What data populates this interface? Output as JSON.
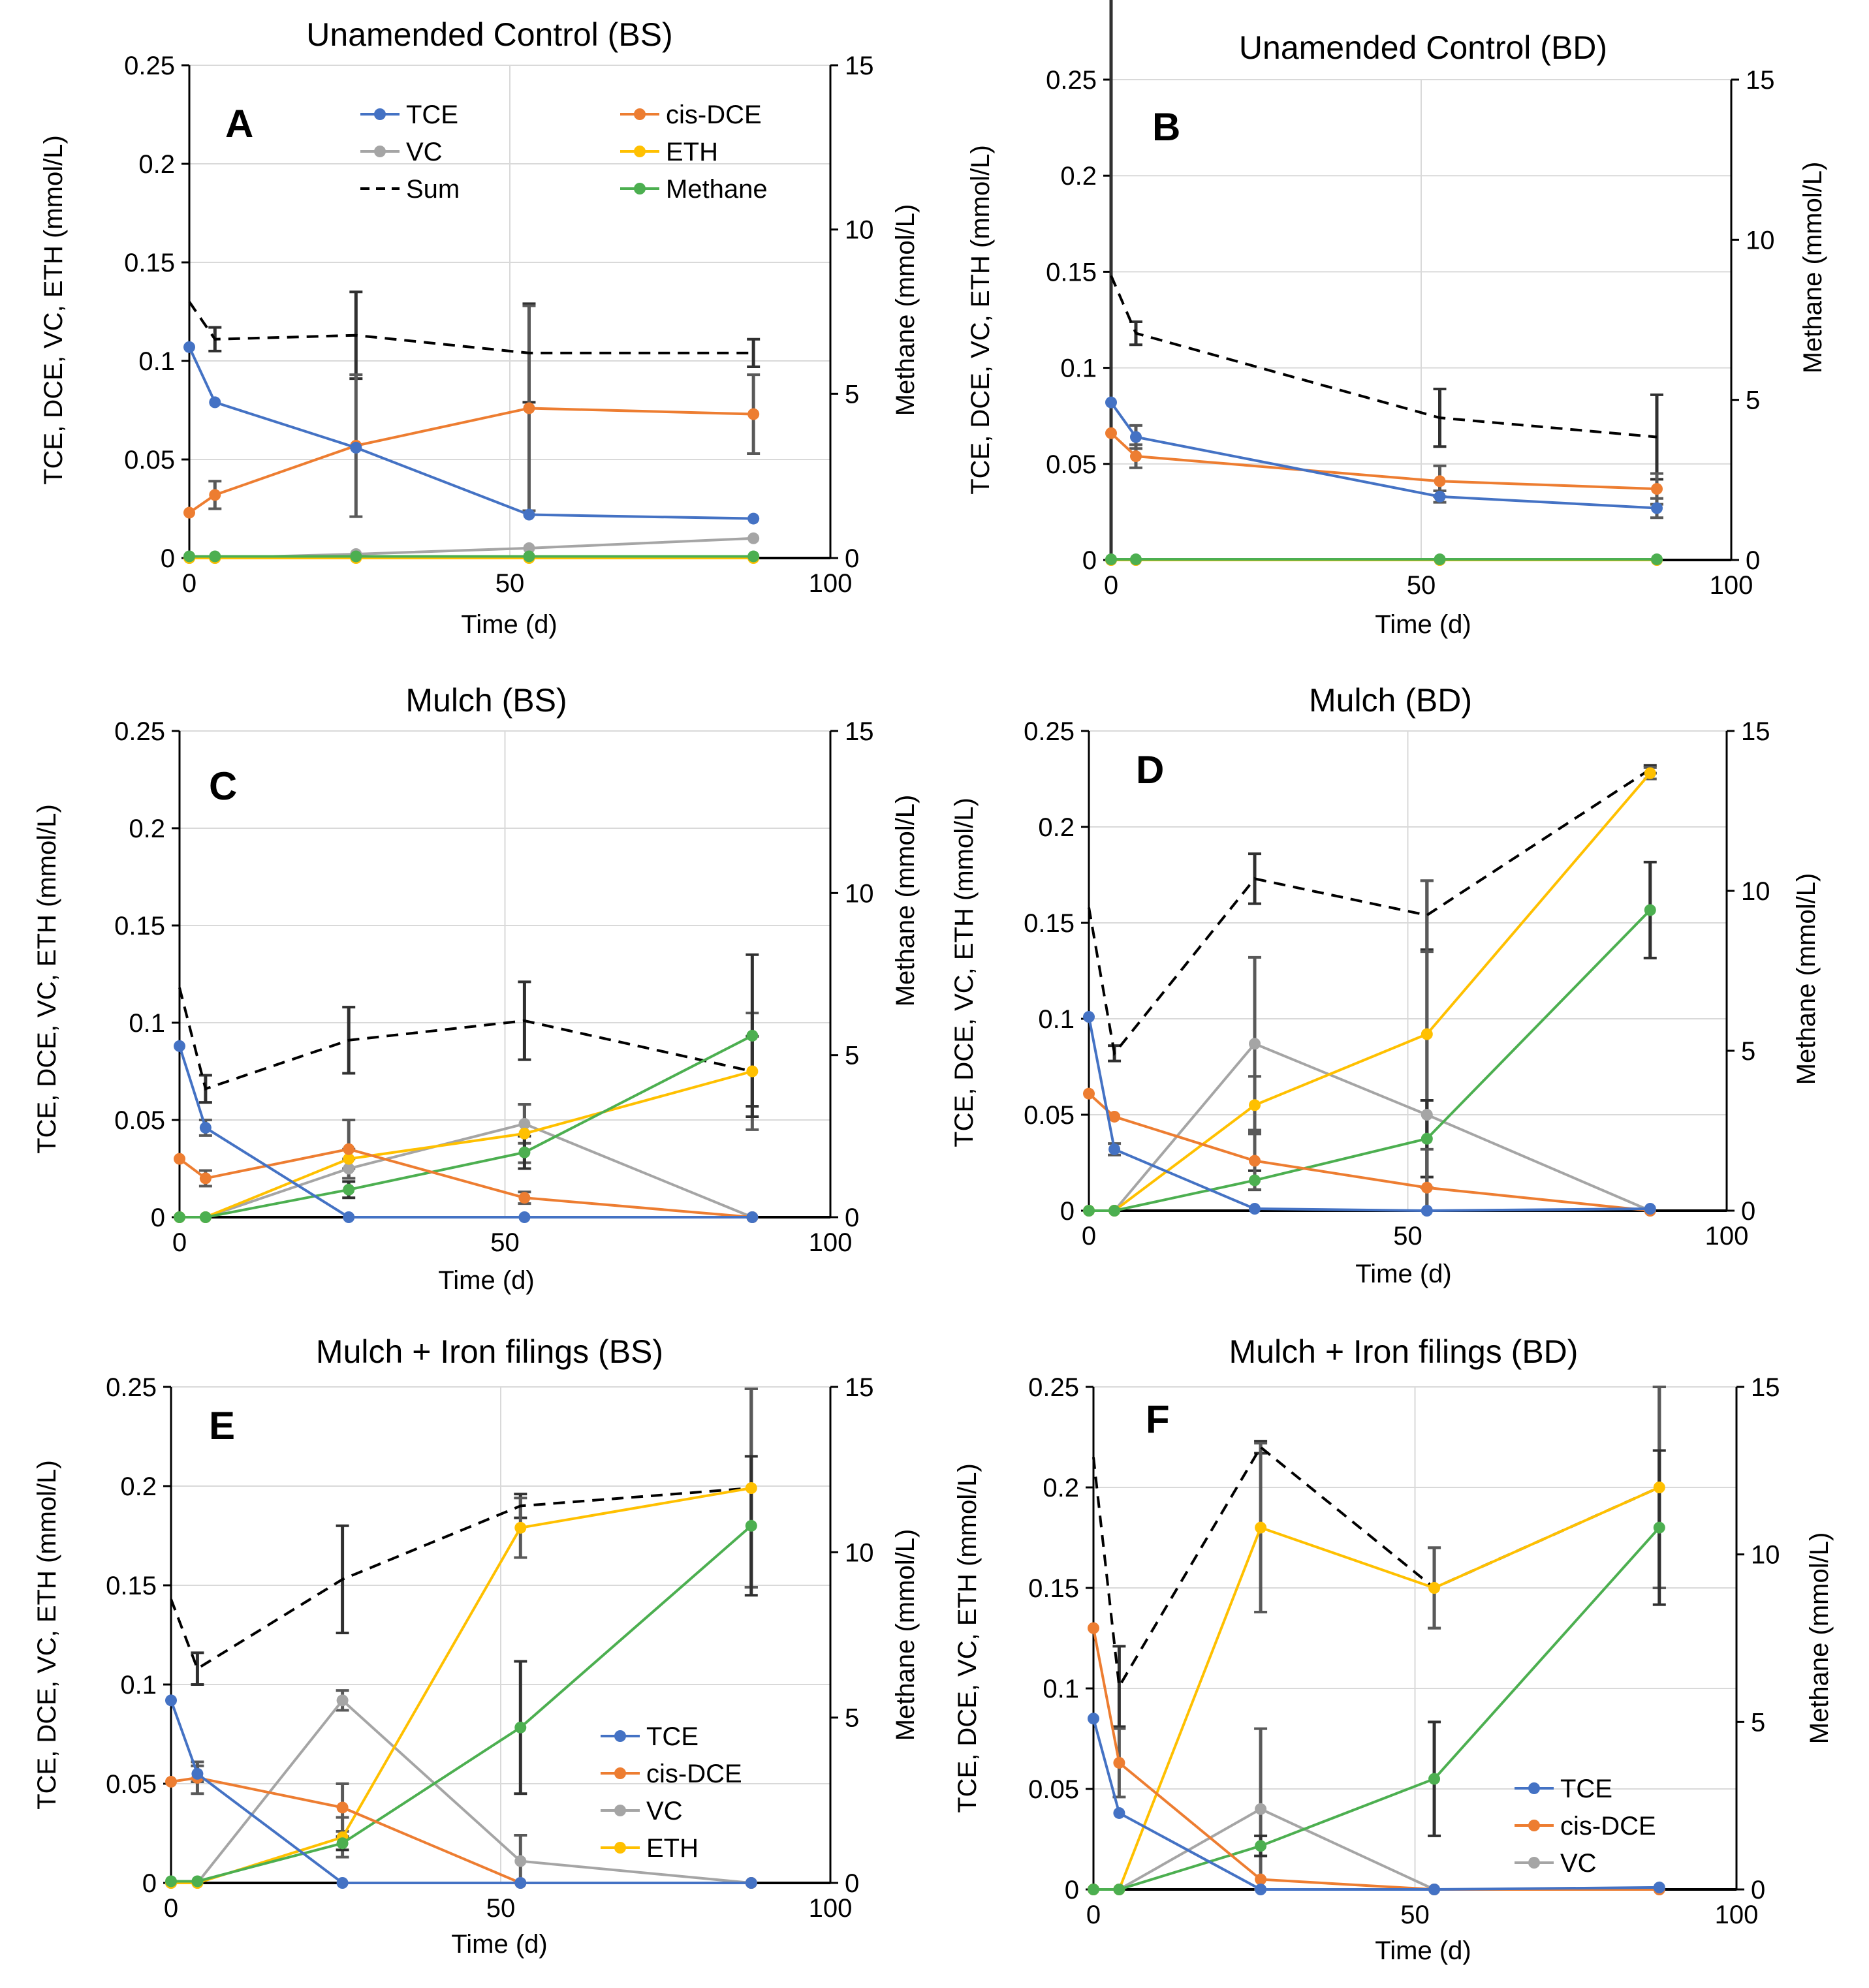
{
  "figure": {
    "shared": {
      "xlabel": "Time (d)",
      "ylabel": "TCE, DCE, VC, ETH (mmol/L)",
      "y2label": "Methane (mmol/L)",
      "xlim": [
        0,
        100
      ],
      "xticks": [
        0,
        50,
        100
      ],
      "ylim": [
        0,
        0.25
      ],
      "yticks": [
        0,
        0.05,
        0.1,
        0.15,
        0.2,
        0.25
      ],
      "y2lim": [
        0,
        15
      ],
      "y2ticks": [
        0,
        5,
        10,
        15
      ]
    },
    "colors": {
      "TCE": "#4472C4",
      "cis-DCE": "#ED7D31",
      "VC": "#A5A5A5",
      "ETH": "#FFC000",
      "Sum": "#000000",
      "Methane": "#4CAF50",
      "gridline": "#D9D9D9",
      "errorbar": "#595959"
    }
  },
  "chart_data": [
    {
      "type": "line",
      "panel": "A",
      "title": "Unamended Control (BS)",
      "xlabel": "Time (d)",
      "ylabel": "TCE, DCE, VC, ETH (mmol/L)",
      "y2label": "Methane (mmol/L)",
      "ylim": [
        0,
        0.25
      ],
      "y2lim": [
        0,
        15
      ],
      "legend": [
        "TCE",
        "cis-DCE",
        "VC",
        "ETH",
        "Sum",
        "Methane"
      ],
      "legend_position": "top-right",
      "series": [
        {
          "name": "TCE",
          "x": [
            0,
            4,
            26,
            53,
            88
          ],
          "values": [
            0.107,
            0.079,
            0.056,
            0.022,
            0.02
          ]
        },
        {
          "name": "cis-DCE",
          "x": [
            0,
            4,
            26,
            53,
            88
          ],
          "values": [
            0.023,
            0.032,
            0.057,
            0.076,
            0.073
          ],
          "error": [
            0,
            0.007,
            0.036,
            0.052,
            0.02
          ]
        },
        {
          "name": "VC",
          "x": [
            0,
            4,
            26,
            53,
            88
          ],
          "values": [
            0,
            0,
            0.002,
            0.005,
            0.01
          ]
        },
        {
          "name": "ETH",
          "x": [
            0,
            4,
            26,
            53,
            88
          ],
          "values": [
            0,
            0,
            0,
            0,
            0
          ]
        },
        {
          "name": "Sum",
          "style": "dashed",
          "x": [
            0,
            4,
            26,
            53,
            88
          ],
          "values": [
            0.13,
            0.111,
            0.113,
            0.104,
            0.104
          ],
          "error": [
            0,
            0.006,
            0.022,
            0.025,
            0.007
          ]
        },
        {
          "name": "Methane",
          "axis": "y2",
          "x": [
            0,
            4,
            26,
            53,
            88
          ],
          "values": [
            0.05,
            0.05,
            0.05,
            0.05,
            0.05
          ]
        }
      ]
    },
    {
      "type": "line",
      "panel": "B",
      "title": "Unamended Control (BD)",
      "xlabel": "Time (d)",
      "ylabel": "TCE, DCE, VC, ETH (mmol/L)",
      "y2label": "Methane (mmol/L)",
      "ylim": [
        0,
        0.25
      ],
      "y2lim": [
        0,
        15
      ],
      "series": [
        {
          "name": "TCE",
          "x": [
            0,
            4,
            53,
            88
          ],
          "values": [
            0.082,
            0.064,
            0.033,
            0.027
          ],
          "error": [
            0,
            0.006,
            0.003,
            0.005
          ]
        },
        {
          "name": "cis-DCE",
          "x": [
            0,
            4,
            53,
            88
          ],
          "values": [
            0.066,
            0.054,
            0.041,
            0.037
          ],
          "error": [
            0,
            0.006,
            0.008,
            0.008
          ]
        },
        {
          "name": "VC",
          "x": [
            0,
            4,
            53,
            88
          ],
          "values": [
            0,
            0,
            0,
            0
          ]
        },
        {
          "name": "ETH",
          "x": [
            0,
            4,
            53,
            88
          ],
          "values": [
            0,
            0,
            0,
            0
          ]
        },
        {
          "name": "Sum",
          "style": "dashed",
          "x": [
            0,
            4,
            53,
            88
          ],
          "values": [
            0.148,
            0.118,
            0.074,
            0.064
          ],
          "error": [
            0.148,
            0.006,
            0.015,
            0.022
          ]
        },
        {
          "name": "Methane",
          "axis": "y2",
          "x": [
            0,
            4,
            53,
            88
          ],
          "values": [
            0.02,
            0.02,
            0.02,
            0.02
          ]
        }
      ]
    },
    {
      "type": "line",
      "panel": "C",
      "title": "Mulch (BS)",
      "xlabel": "Time (d)",
      "ylabel": "TCE, DCE, VC, ETH (mmol/L)",
      "y2label": "Methane (mmol/L)",
      "ylim": [
        0,
        0.25
      ],
      "y2lim": [
        0,
        15
      ],
      "series": [
        {
          "name": "TCE",
          "x": [
            0,
            4,
            26,
            53,
            88
          ],
          "values": [
            0.088,
            0.046,
            0,
            0,
            0
          ],
          "error": [
            0,
            0.004,
            0,
            0,
            0
          ]
        },
        {
          "name": "cis-DCE",
          "x": [
            0,
            4,
            26,
            53,
            88
          ],
          "values": [
            0.03,
            0.02,
            0.035,
            0.01,
            0
          ],
          "error": [
            0,
            0.004,
            0.015,
            0.003,
            0
          ]
        },
        {
          "name": "VC",
          "x": [
            0,
            4,
            26,
            53,
            88
          ],
          "values": [
            0,
            0,
            0.025,
            0.048,
            0
          ],
          "error": [
            0,
            0,
            0.005,
            0.01,
            0
          ]
        },
        {
          "name": "ETH",
          "x": [
            0,
            4,
            26,
            53,
            88
          ],
          "values": [
            0,
            0,
            0.03,
            0.043,
            0.075
          ],
          "error": [
            0,
            0,
            0.005,
            0.015,
            0.03
          ]
        },
        {
          "name": "Sum",
          "style": "dashed",
          "x": [
            0,
            4,
            26,
            53,
            88
          ],
          "values": [
            0.118,
            0.066,
            0.091,
            0.101,
            0.075
          ],
          "error": [
            0,
            0.007,
            0.017,
            0.02,
            0.018
          ]
        },
        {
          "name": "Methane",
          "axis": "y2",
          "x": [
            0,
            4,
            26,
            53,
            88
          ],
          "values": [
            0,
            0,
            0.85,
            2,
            5.6
          ],
          "error": [
            0,
            0,
            0.25,
            0.5,
            2.5
          ]
        }
      ]
    },
    {
      "type": "line",
      "panel": "D",
      "title": "Mulch (BD)",
      "xlabel": "Time (d)",
      "ylabel": "TCE, DCE, VC, ETH (mmol/L)",
      "y2label": "Methane (mmol/L)",
      "ylim": [
        0,
        0.25
      ],
      "y2lim": [
        0,
        15
      ],
      "series": [
        {
          "name": "TCE",
          "x": [
            0,
            4,
            26,
            53,
            88
          ],
          "values": [
            0.101,
            0.032,
            0.001,
            0,
            0.001
          ],
          "error": [
            0,
            0.003,
            0,
            0,
            0
          ]
        },
        {
          "name": "cis-DCE",
          "x": [
            0,
            4,
            26,
            53,
            88
          ],
          "values": [
            0.061,
            0.049,
            0.026,
            0.012,
            0
          ],
          "error": [
            0,
            0,
            0.015,
            0.02,
            0
          ]
        },
        {
          "name": "VC",
          "x": [
            0,
            4,
            26,
            53,
            88
          ],
          "values": [
            0,
            0,
            0.087,
            0.05,
            0
          ],
          "error": [
            0,
            0,
            0.045,
            0.085,
            0
          ]
        },
        {
          "name": "ETH",
          "x": [
            0,
            4,
            26,
            53,
            88
          ],
          "values": [
            0,
            0,
            0.055,
            0.092,
            0.228
          ],
          "error": [
            0,
            0,
            0.015,
            0.08,
            0.003
          ]
        },
        {
          "name": "Sum",
          "style": "dashed",
          "x": [
            0,
            4,
            26,
            53,
            88
          ],
          "values": [
            0.158,
            0.082,
            0.173,
            0.154,
            0.23
          ],
          "error": [
            0,
            0.004,
            0.013,
            0.018,
            0.002
          ]
        },
        {
          "name": "Methane",
          "axis": "y2",
          "x": [
            0,
            4,
            26,
            53,
            88
          ],
          "values": [
            0,
            0,
            0.95,
            2.25,
            9.4
          ],
          "error": [
            0,
            0,
            0.3,
            1.2,
            1.5
          ]
        }
      ]
    },
    {
      "type": "line",
      "panel": "E",
      "title": "Mulch + Iron filings (BS)",
      "xlabel": "Time (d)",
      "ylabel": "TCE, DCE, VC, ETH (mmol/L)",
      "y2label": "Methane (mmol/L)",
      "ylim": [
        0,
        0.25
      ],
      "y2lim": [
        0,
        15
      ],
      "legend": [
        "TCE",
        "cis-DCE",
        "VC",
        "ETH"
      ],
      "legend_position": "bottom-right",
      "series": [
        {
          "name": "TCE",
          "x": [
            0,
            4,
            26,
            53,
            88
          ],
          "values": [
            0.092,
            0.055,
            0,
            0,
            0
          ],
          "error": [
            0,
            0.004,
            0,
            0,
            0
          ]
        },
        {
          "name": "cis-DCE",
          "x": [
            0,
            4,
            26,
            53,
            88
          ],
          "values": [
            0.051,
            0.053,
            0.038,
            0,
            0
          ],
          "error": [
            0,
            0.008,
            0.012,
            0,
            0
          ]
        },
        {
          "name": "VC",
          "x": [
            0,
            4,
            26,
            53,
            88
          ],
          "values": [
            0,
            0,
            0.092,
            0.011,
            0
          ],
          "error": [
            0,
            0,
            0.005,
            0.013,
            0
          ]
        },
        {
          "name": "ETH",
          "x": [
            0,
            4,
            26,
            53,
            88
          ],
          "values": [
            0,
            0,
            0.023,
            0.179,
            0.199
          ],
          "error": [
            0,
            0,
            0.01,
            0.015,
            0.05
          ]
        },
        {
          "name": "Sum",
          "style": "dashed",
          "x": [
            0,
            4,
            26,
            53,
            88
          ],
          "values": [
            0.143,
            0.108,
            0.153,
            0.19,
            0.199
          ],
          "error": [
            0,
            0.008,
            0.027,
            0.006,
            0.05
          ]
        },
        {
          "name": "Methane",
          "axis": "y2",
          "x": [
            0,
            4,
            26,
            53,
            88
          ],
          "values": [
            0.05,
            0.05,
            1.2,
            4.7,
            10.8
          ],
          "error": [
            0,
            0,
            0.2,
            2.0,
            2.1
          ]
        }
      ]
    },
    {
      "type": "line",
      "panel": "F",
      "title": "Mulch + Iron filings (BD)",
      "xlabel": "Time (d)",
      "ylabel": "TCE, DCE, VC, ETH (mmol/L)",
      "y2label": "Methane (mmol/L)",
      "ylim": [
        0,
        0.25
      ],
      "y2lim": [
        0,
        15
      ],
      "legend": [
        "TCE",
        "cis-DCE",
        "VC"
      ],
      "legend_position": "bottom-right",
      "series": [
        {
          "name": "TCE",
          "x": [
            0,
            4,
            26,
            53,
            88
          ],
          "values": [
            0.085,
            0.038,
            0,
            0,
            0.001
          ]
        },
        {
          "name": "cis-DCE",
          "x": [
            0,
            4,
            26,
            53,
            88
          ],
          "values": [
            0.13,
            0.063,
            0.005,
            0,
            0
          ],
          "error": [
            0,
            0.017,
            0,
            0,
            0
          ]
        },
        {
          "name": "VC",
          "x": [
            0,
            4,
            26,
            53,
            88
          ],
          "values": [
            0,
            0,
            0.04,
            0,
            0
          ],
          "error": [
            0,
            0,
            0.04,
            0,
            0
          ]
        },
        {
          "name": "ETH",
          "x": [
            0,
            4,
            26,
            53,
            88
          ],
          "values": [
            0,
            0,
            0.18,
            0.15,
            0.2
          ],
          "error": [
            0,
            0,
            0.042,
            0.02,
            0.05
          ]
        },
        {
          "name": "Sum",
          "style": "dashed",
          "x": [
            0,
            4,
            26,
            53,
            88
          ],
          "values": [
            0.215,
            0.101,
            0.22,
            0.15,
            0.2
          ],
          "error": [
            0,
            0.02,
            0.003,
            0.02,
            0.05
          ]
        },
        {
          "name": "Methane",
          "axis": "y2",
          "x": [
            0,
            4,
            26,
            53,
            88
          ],
          "values": [
            0,
            0,
            1.3,
            3.3,
            10.8
          ],
          "error": [
            0,
            0,
            0.3,
            1.7,
            2.3
          ]
        }
      ]
    }
  ]
}
